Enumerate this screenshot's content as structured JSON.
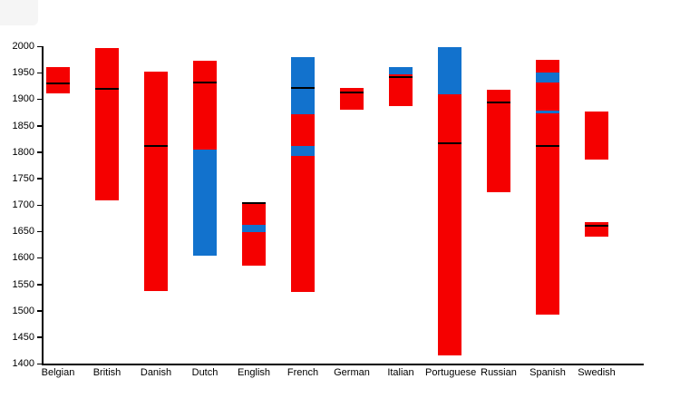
{
  "chart_data": {
    "type": "bar",
    "subtype": "stacked-range-bars-with-marker-lines",
    "title": "",
    "xlabel": "",
    "ylabel": "",
    "ylim": [
      1400,
      2000
    ],
    "ytick_step": 50,
    "yticks": [
      2000,
      1950,
      1900,
      1850,
      1800,
      1750,
      1700,
      1650,
      1600,
      1550,
      1500,
      1450,
      1400
    ],
    "grid": false,
    "legend": null,
    "colors": {
      "red": "#f50000",
      "blue": "#1272cd",
      "marker": "#000000",
      "axis": "#000000"
    },
    "categories": [
      "Belgian",
      "British",
      "Danish",
      "Dutch",
      "English",
      "French",
      "German",
      "Italian",
      "Portuguese",
      "Russian",
      "Spanish",
      "Swedish"
    ],
    "bars": [
      {
        "category": "Belgian",
        "segments": [
          {
            "color": "red",
            "from": 1910,
            "to": 1960
          }
        ],
        "marker_lines": [
          1929
        ]
      },
      {
        "category": "British",
        "segments": [
          {
            "color": "red",
            "from": 1708,
            "to": 1996
          }
        ],
        "marker_lines": [
          1920
        ]
      },
      {
        "category": "Danish",
        "segments": [
          {
            "color": "red",
            "from": 1538,
            "to": 1952
          }
        ],
        "marker_lines": [
          1812
        ]
      },
      {
        "category": "Dutch",
        "segments": [
          {
            "color": "red",
            "from": 1805,
            "to": 1973
          },
          {
            "color": "blue",
            "from": 1604,
            "to": 1805
          }
        ],
        "marker_lines": [
          1931
        ]
      },
      {
        "category": "English",
        "segments": [
          {
            "color": "red",
            "from": 1662,
            "to": 1706
          },
          {
            "color": "blue",
            "from": 1648,
            "to": 1662
          },
          {
            "color": "red",
            "from": 1585,
            "to": 1648
          }
        ],
        "marker_lines": [
          1704
        ]
      },
      {
        "category": "French",
        "segments": [
          {
            "color": "blue",
            "from": 1872,
            "to": 1979
          },
          {
            "color": "red",
            "from": 1811,
            "to": 1872
          },
          {
            "color": "blue",
            "from": 1792,
            "to": 1811
          },
          {
            "color": "red",
            "from": 1536,
            "to": 1792
          }
        ],
        "marker_lines": [
          1921
        ]
      },
      {
        "category": "German",
        "segments": [
          {
            "color": "red",
            "from": 1880,
            "to": 1921
          }
        ],
        "marker_lines": [
          1912
        ]
      },
      {
        "category": "Italian",
        "segments": [
          {
            "color": "blue",
            "from": 1947,
            "to": 1960
          },
          {
            "color": "red",
            "from": 1887,
            "to": 1947
          }
        ],
        "marker_lines": [
          1941
        ]
      },
      {
        "category": "Portuguese",
        "segments": [
          {
            "color": "blue",
            "from": 1909,
            "to": 1998
          },
          {
            "color": "red",
            "from": 1415,
            "to": 1909
          }
        ],
        "marker_lines": [
          1817
        ]
      },
      {
        "category": "Russian",
        "segments": [
          {
            "color": "red",
            "from": 1724,
            "to": 1918
          }
        ],
        "marker_lines": [
          1894
        ]
      },
      {
        "category": "Spanish",
        "segments": [
          {
            "color": "red",
            "from": 1950,
            "to": 1974
          },
          {
            "color": "blue",
            "from": 1931,
            "to": 1950
          },
          {
            "color": "red",
            "from": 1878,
            "to": 1931
          },
          {
            "color": "blue",
            "from": 1873,
            "to": 1878
          },
          {
            "color": "red",
            "from": 1493,
            "to": 1873
          }
        ],
        "marker_lines": [
          1812
        ]
      },
      {
        "category": "Swedish",
        "segments": [
          {
            "color": "red",
            "from": 1786,
            "to": 1877
          },
          {
            "color": "red",
            "from": 1640,
            "to": 1667
          }
        ],
        "marker_lines": [
          1661
        ]
      }
    ]
  }
}
